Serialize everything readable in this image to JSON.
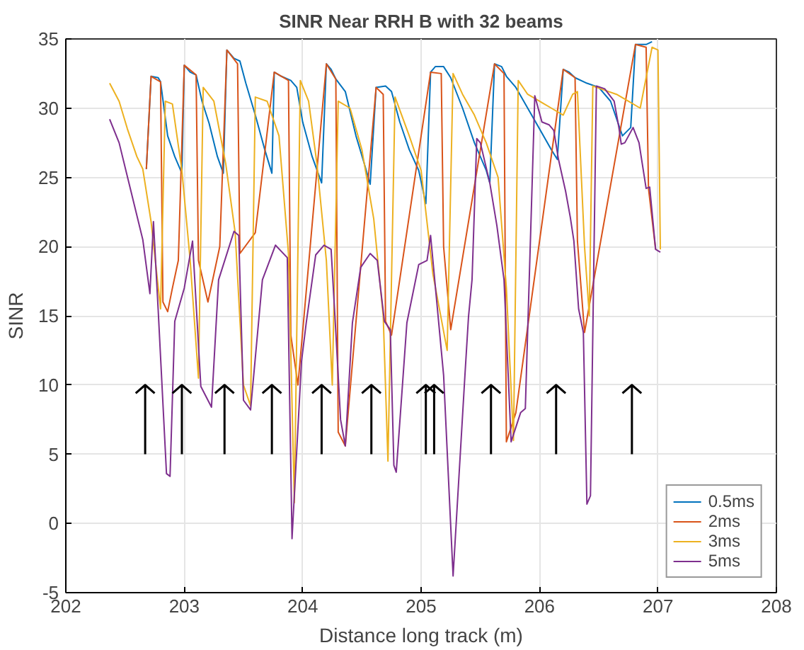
{
  "chart_data": {
    "type": "line",
    "title": "SINR Near RRH B with 32 beams",
    "xlabel": "Distance long track (m)",
    "ylabel": "SINR",
    "xlim": [
      202,
      208
    ],
    "ylim": [
      -5,
      35
    ],
    "xticks": [
      202,
      203,
      204,
      205,
      206,
      207,
      208
    ],
    "yticks": [
      -5,
      0,
      5,
      10,
      15,
      20,
      25,
      30,
      35
    ],
    "grid": true,
    "legend": "bottom right",
    "series": [
      {
        "name": "0.5ms",
        "color": "#0072bd",
        "x": [
          202.68,
          202.72,
          202.78,
          202.8,
          202.86,
          202.92,
          202.98,
          203.0,
          203.05,
          203.1,
          203.15,
          203.21,
          203.28,
          203.33,
          203.36,
          203.42,
          203.47,
          203.52,
          203.6,
          203.68,
          203.74,
          203.76,
          203.82,
          203.9,
          203.95,
          204.0,
          204.08,
          204.16,
          204.2,
          204.24,
          204.28,
          204.36,
          204.45,
          204.52,
          204.57,
          204.62,
          204.7,
          204.75,
          204.82,
          204.9,
          204.98,
          205.04,
          205.08,
          205.12,
          205.19,
          205.25,
          205.35,
          205.45,
          205.55,
          205.58,
          205.62,
          205.68,
          205.72,
          205.8,
          205.9,
          206.0,
          206.1,
          206.15,
          206.2,
          206.25,
          206.3,
          206.4,
          206.5,
          206.6,
          206.7,
          206.77,
          206.81,
          206.9,
          206.95
        ],
        "values": [
          25.6,
          32.3,
          32.2,
          31.9,
          28,
          26.5,
          25.3,
          33.1,
          32.6,
          32.4,
          30.5,
          28.9,
          26.5,
          25.3,
          34.2,
          33.6,
          33.4,
          31.8,
          29.5,
          27,
          25.3,
          32.6,
          32.3,
          32.0,
          31.5,
          29,
          26.5,
          24.6,
          33.2,
          32.8,
          32.1,
          31.2,
          28,
          26,
          24.5,
          31.5,
          31.6,
          31.2,
          29,
          27,
          25.5,
          23.1,
          32.6,
          33.0,
          33.0,
          32.2,
          30,
          27.5,
          25.5,
          24.6,
          33.2,
          33.0,
          32.3,
          31.5,
          30,
          28.5,
          27,
          26.3,
          32.8,
          32.6,
          32.2,
          31.8,
          31.5,
          30.5,
          28,
          28.6,
          34.6,
          34.6,
          34.8
        ]
      },
      {
        "name": "2ms",
        "color": "#d95319",
        "x": [
          202.68,
          202.72,
          202.8,
          202.82,
          202.86,
          202.9,
          202.95,
          203.0,
          203.1,
          203.12,
          203.2,
          203.3,
          203.36,
          203.45,
          203.47,
          203.6,
          203.76,
          203.88,
          203.9,
          203.96,
          204.2,
          204.28,
          204.3,
          204.36,
          204.62,
          204.68,
          204.7,
          204.75,
          205.08,
          205.17,
          205.19,
          205.25,
          205.62,
          205.7,
          205.72,
          205.8,
          206.2,
          206.3,
          206.32,
          206.38,
          206.81,
          206.9,
          206.92,
          206.98
        ],
        "values": [
          25.6,
          32.3,
          31.9,
          16,
          15.3,
          17,
          19,
          33.1,
          32.4,
          19,
          16,
          20,
          34.2,
          33.2,
          19.5,
          21,
          32.6,
          32,
          13.6,
          10,
          33.2,
          32.1,
          6.6,
          5.6,
          31.5,
          31,
          14.6,
          13.6,
          32.6,
          32.5,
          20,
          14,
          33.2,
          32.5,
          5.9,
          8,
          32.8,
          32.2,
          20.4,
          13.8,
          34.6,
          34.4,
          24.2,
          19.8
        ]
      },
      {
        "name": "3ms",
        "color": "#edb120",
        "x": [
          202.37,
          202.45,
          202.52,
          202.6,
          202.65,
          202.72,
          202.8,
          202.84,
          202.9,
          202.98,
          203.05,
          203.12,
          203.16,
          203.25,
          203.35,
          203.43,
          203.5,
          203.56,
          203.6,
          203.7,
          203.8,
          203.88,
          203.93,
          203.98,
          204.05,
          204.12,
          204.2,
          204.25,
          204.3,
          204.4,
          204.5,
          204.6,
          204.68,
          204.72,
          204.78,
          204.9,
          205.0,
          205.1,
          205.22,
          205.27,
          205.35,
          205.45,
          205.55,
          205.65,
          205.72,
          205.78,
          205.82,
          205.9,
          206.0,
          206.1,
          206.2,
          206.28,
          206.32,
          206.38,
          206.42,
          206.45,
          206.55,
          206.65,
          206.75,
          206.85,
          206.95,
          207.0,
          207.02
        ],
        "values": [
          31.8,
          30.5,
          28.5,
          26.5,
          25.6,
          21.8,
          15.5,
          30.5,
          30.3,
          25.5,
          19,
          10.5,
          31.5,
          30.5,
          26,
          21,
          10,
          8.5,
          30.8,
          30.5,
          28,
          19.5,
          1.5,
          32,
          30.5,
          26,
          19,
          10,
          30.5,
          30,
          27,
          22,
          15,
          4.5,
          30.8,
          28,
          25.5,
          18,
          12.5,
          32.5,
          31,
          29.5,
          27.5,
          25,
          17,
          6,
          32,
          31,
          30.5,
          30,
          29.5,
          31,
          31.2,
          20,
          15,
          31.6,
          31.3,
          31,
          30.5,
          30,
          34.4,
          34.2,
          19.8
        ]
      },
      {
        "name": "5ms",
        "color": "#7e2f8e",
        "x": [
          202.37,
          202.45,
          202.55,
          202.65,
          202.71,
          202.74,
          202.78,
          202.85,
          202.88,
          202.92,
          203.0,
          203.07,
          203.14,
          203.23,
          203.29,
          203.42,
          203.46,
          203.5,
          203.56,
          203.66,
          203.77,
          203.87,
          203.91,
          203.99,
          204.03,
          204.11,
          204.18,
          204.24,
          204.28,
          204.32,
          204.36,
          204.42,
          204.49,
          204.57,
          204.63,
          204.69,
          204.74,
          204.77,
          204.79,
          204.88,
          204.98,
          205.05,
          205.08,
          205.19,
          205.27,
          205.37,
          205.4,
          205.43,
          205.47,
          205.5,
          205.58,
          205.64,
          205.7,
          205.76,
          205.84,
          205.88,
          205.96,
          206.02,
          206.08,
          206.12,
          206.16,
          206.22,
          206.26,
          206.29,
          206.33,
          206.37,
          206.4,
          206.43,
          206.48,
          206.55,
          206.63,
          206.67,
          206.69,
          206.72,
          206.79,
          206.84,
          206.9,
          206.93,
          206.98,
          207.02
        ],
        "values": [
          29.2,
          27.5,
          24,
          20.5,
          16.6,
          21.8,
          15.4,
          3.6,
          3.4,
          14.6,
          17,
          20.4,
          9.9,
          8.4,
          17.6,
          21.1,
          20.8,
          8.9,
          8.2,
          17.6,
          20.1,
          19.2,
          -1.1,
          11.7,
          14.5,
          19.4,
          20.1,
          19.8,
          13.8,
          7.5,
          5.6,
          14.5,
          18.5,
          19.5,
          19,
          14.6,
          14,
          4.2,
          3.7,
          14.5,
          18.7,
          19,
          20.8,
          10.7,
          -3.8,
          10.7,
          14.9,
          17.6,
          27.8,
          27.5,
          24.6,
          21.5,
          17.6,
          5.9,
          8.0,
          8.3,
          30.9,
          29.0,
          28.8,
          28.4,
          26.3,
          24.0,
          22.1,
          20.4,
          15.5,
          13.8,
          1.4,
          2,
          31.6,
          31.4,
          30.5,
          28.6,
          27.4,
          27.5,
          28.6,
          27.5,
          24.2,
          24.3,
          19.8,
          19.6
        ]
      },
      {
        "type": "line",
        "color": "#000000",
        "x": [
          202.67,
          202.67,
          null,
          202.59,
          202.67,
          202.75,
          null,
          202.98,
          202.98,
          null,
          202.9,
          202.98,
          203.06,
          null,
          203.34,
          203.34,
          null,
          203.26,
          203.34,
          203.42,
          null,
          203.74,
          203.74,
          null,
          203.66,
          203.74,
          203.82,
          null,
          204.16,
          204.16,
          null,
          204.08,
          204.16,
          204.24,
          null,
          204.58,
          204.58,
          null,
          204.5,
          204.58,
          204.66,
          null,
          205.04,
          205.04,
          null,
          204.96,
          205.04,
          205.12,
          null,
          205.11,
          205.11,
          null,
          205.03,
          205.11,
          205.19,
          null,
          205.59,
          205.59,
          null,
          205.51,
          205.59,
          205.67,
          null,
          206.14,
          206.14,
          null,
          206.06,
          206.14,
          206.22,
          null,
          206.78,
          206.78,
          null,
          206.7,
          206.78,
          206.86
        ],
        "values": [
          5,
          10,
          null,
          9.4,
          10,
          9.4,
          null,
          5,
          10,
          null,
          9.4,
          10,
          9.4,
          null,
          5,
          10,
          null,
          9.4,
          10,
          9.4,
          null,
          5,
          10,
          null,
          9.4,
          10,
          9.4,
          null,
          5,
          10,
          null,
          9.4,
          10,
          9.4,
          null,
          5,
          10,
          null,
          9.4,
          10,
          9.4,
          null,
          5,
          10,
          null,
          9.4,
          10,
          9.4,
          null,
          5,
          10,
          null,
          9.4,
          10,
          9.4,
          null,
          5,
          10,
          null,
          9.4,
          10,
          9.4,
          null,
          5,
          10,
          null,
          9.4,
          10,
          9.4,
          null,
          5,
          10,
          null,
          9.4,
          10,
          9.4
        ]
      }
    ]
  }
}
